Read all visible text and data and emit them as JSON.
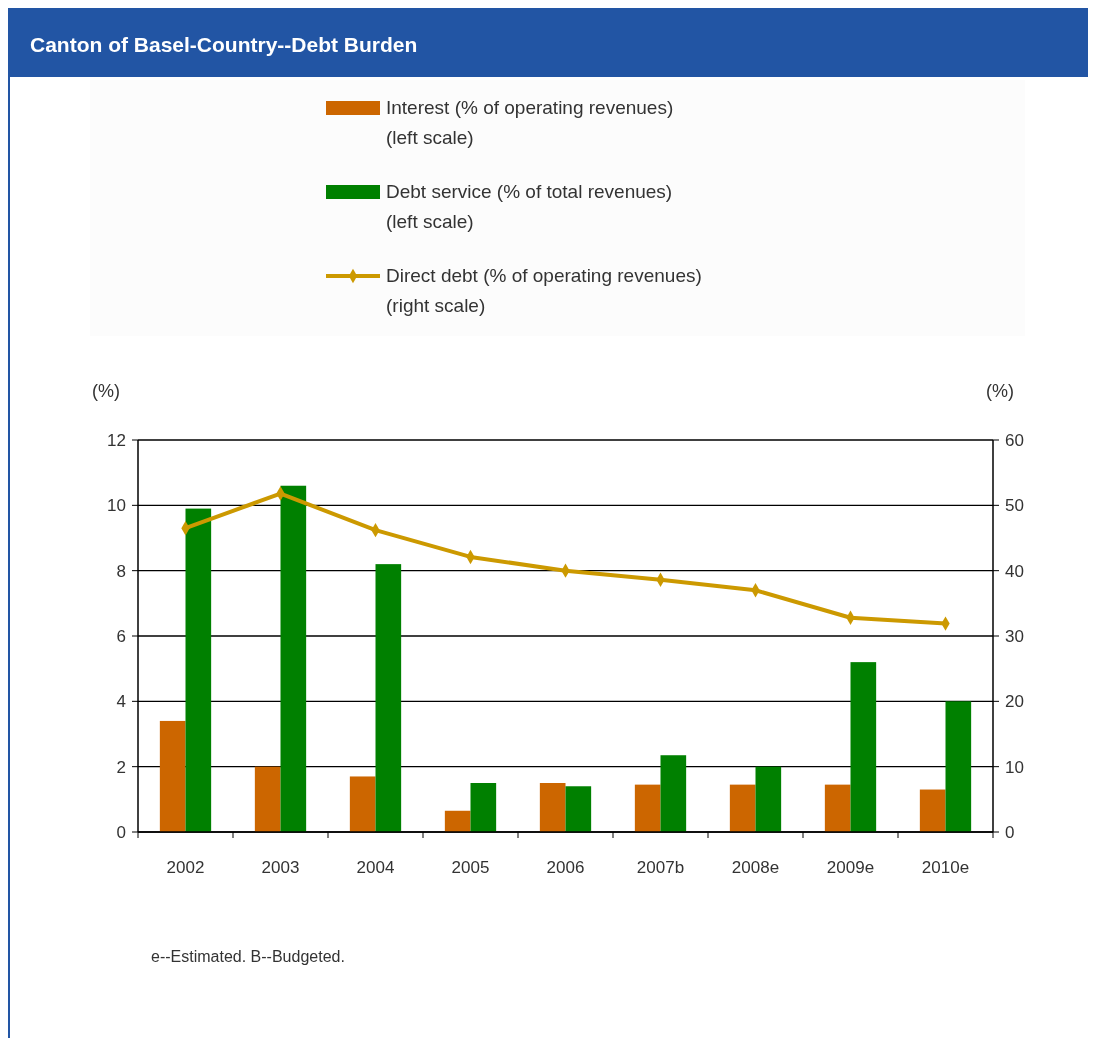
{
  "chart_data": {
    "type": "bar",
    "title": "Canton of Basel-Country--Debt Burden",
    "ylabel": "(%)",
    "y2label": "(%)",
    "categories": [
      "2002",
      "2003",
      "2004",
      "2005",
      "2006",
      "2007b",
      "2008e",
      "2009e",
      "2010e"
    ],
    "series": [
      {
        "name": "Interest (% of operating revenues)\n(left scale)",
        "color": "#cc6600",
        "values": [
          3.4,
          2.0,
          1.7,
          0.65,
          1.5,
          1.45,
          1.45,
          1.45,
          1.3
        ]
      },
      {
        "name": "Debt service (% of total revenues)\n(left scale)",
        "color": "#008000",
        "values": [
          9.9,
          10.6,
          8.2,
          1.5,
          1.4,
          2.35,
          2.0,
          5.2,
          4.0
        ]
      },
      {
        "name": "Direct debt (% of operating revenues)\n(right scale)",
        "type": "line",
        "axis": "y2",
        "color": "#cc9900",
        "marker": "diamond",
        "values": [
          46.5,
          51.8,
          46.2,
          42.1,
          40.0,
          38.6,
          37.0,
          32.8,
          31.9
        ]
      }
    ],
    "ylim": [
      0,
      12
    ],
    "yticks": [
      0,
      2,
      4,
      6,
      8,
      10,
      12
    ],
    "y2lim": [
      0,
      60
    ],
    "y2ticks": [
      0,
      10,
      20,
      30,
      40,
      50,
      60
    ],
    "grid": "y",
    "legend": "top",
    "annotations": [
      "e--Estimated. B--Budgeted."
    ]
  }
}
